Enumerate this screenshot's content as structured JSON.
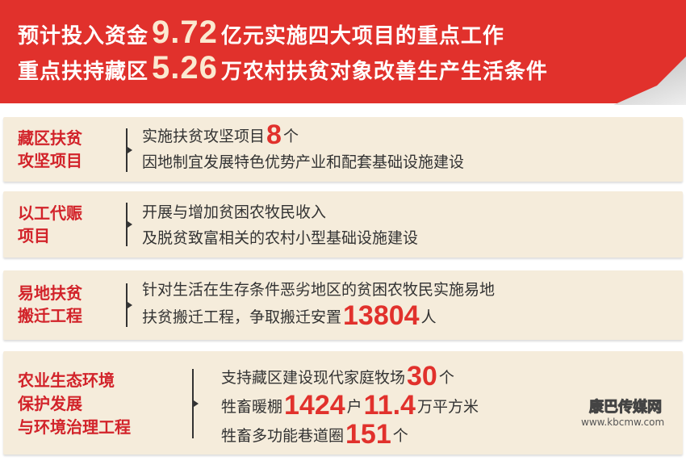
{
  "header": {
    "line1": {
      "pre": "预计投入资金",
      "num": "9.72",
      "post": "亿元实施四大项目的重点工作"
    },
    "line2": {
      "pre": "重点扶持藏区",
      "num": "5.26",
      "post": "万农村扶贫对象改善生产生活条件"
    }
  },
  "panels": [
    {
      "label": [
        "藏区扶贫",
        "攻坚项目"
      ],
      "lines": [
        {
          "pre": "实施扶贫攻坚项目",
          "num": "8",
          "post": "个"
        },
        {
          "pre": "因地制宜发展特色优势产业和配套基础设施建设"
        }
      ]
    },
    {
      "label": [
        "以工代赈",
        "项目"
      ],
      "lines": [
        {
          "pre": "开展与增加贫困农牧民收入"
        },
        {
          "pre": "及脱贫致富相关的农村小型基础设施建设"
        }
      ]
    },
    {
      "label": [
        "易地扶贫",
        "搬迁工程"
      ],
      "lines": [
        {
          "pre": "针对生活在生存条件恶劣地区的贫困农牧民实施易地"
        },
        {
          "pre": "扶贫搬迁工程，争取搬迁安置",
          "num": "13804",
          "post": "人"
        }
      ]
    },
    {
      "label": [
        "农业生态环境",
        "保护发展",
        "与环境治理工程"
      ],
      "lines": [
        {
          "pre": "支持藏区建设现代家庭牧场",
          "num": "30",
          "post": "个"
        },
        {
          "pre": "牲畜暖棚",
          "num": "1424",
          "post": "户",
          "num2": "11.4",
          "post2": "万平方米"
        },
        {
          "pre": "牲畜多功能巷道圈",
          "num": "151",
          "post": "个"
        }
      ]
    }
  ],
  "watermark": {
    "name": "康巴传媒网",
    "url": "www.kbcmw.com"
  },
  "colors": {
    "red": "#e1312c",
    "label": "#d2232a",
    "panel": "#f5ecdb"
  }
}
